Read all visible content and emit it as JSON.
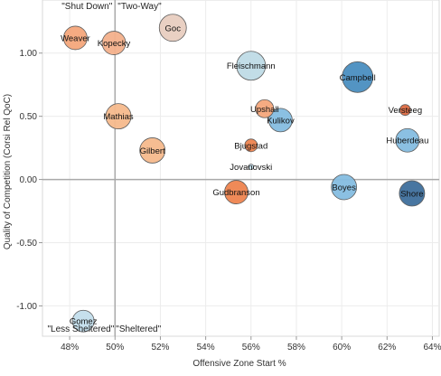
{
  "chart_data": {
    "type": "scatter",
    "xlabel": "Offensive Zone Start %",
    "ylabel": "Quality of Competition (Corsi Rel QoC)",
    "xlim": [
      0.468,
      0.643
    ],
    "ylim": [
      -1.24,
      1.42
    ],
    "x_ticks": [
      0.48,
      0.5,
      0.52,
      0.54,
      0.56,
      0.58,
      0.6,
      0.62,
      0.64
    ],
    "x_tick_labels": [
      "48%",
      "50%",
      "52%",
      "54%",
      "56%",
      "58%",
      "60%",
      "62%",
      "64%"
    ],
    "y_ticks": [
      1.0,
      0.5,
      0.0,
      -0.5,
      -1.0
    ],
    "y_tick_labels": [
      "1.00",
      "0.50",
      "0.00",
      "-0.50",
      "-1.00"
    ],
    "reference_lines": {
      "x": 0.5,
      "y": 0.0
    },
    "quadrant_labels": [
      {
        "text": "\"Shut Down\"",
        "position": "top-left"
      },
      {
        "text": "\"Two-Way\"",
        "position": "top-right"
      },
      {
        "text": "\"Less Sheltered\"",
        "position": "bottom-left"
      },
      {
        "text": "\"Sheltered\"",
        "position": "bottom-right"
      }
    ],
    "grid": true,
    "points": [
      {
        "name": "Weaver",
        "x": 0.4825,
        "y": 1.12,
        "color": "#f4a77b",
        "size": 13
      },
      {
        "name": "Kopecky",
        "x": 0.4995,
        "y": 1.08,
        "color": "#f3b08b",
        "size": 13
      },
      {
        "name": "Goc",
        "x": 0.5255,
        "y": 1.2,
        "color": "#e8cdc0",
        "size": 15
      },
      {
        "name": "Fleischmann",
        "x": 0.56,
        "y": 0.9,
        "color": "#bfdbe6",
        "size": 16
      },
      {
        "name": "Campbell",
        "x": 0.607,
        "y": 0.81,
        "color": "#4a8ec0",
        "size": 17
      },
      {
        "name": "Mathias",
        "x": 0.5015,
        "y": 0.5,
        "color": "#f6b98c",
        "size": 14
      },
      {
        "name": "Upshall",
        "x": 0.566,
        "y": 0.56,
        "color": "#f4a77b",
        "size": 10
      },
      {
        "name": "Kulikov",
        "x": 0.573,
        "y": 0.47,
        "color": "#85bde0",
        "size": 13
      },
      {
        "name": "Versteeg",
        "x": 0.628,
        "y": 0.55,
        "color": "#dc6a42",
        "size": 6
      },
      {
        "name": "Huberdeau",
        "x": 0.629,
        "y": 0.31,
        "color": "#85bde0",
        "size": 13
      },
      {
        "name": "Gilbert",
        "x": 0.5165,
        "y": 0.23,
        "color": "#f6b98c",
        "size": 14
      },
      {
        "name": "Bjugstad",
        "x": 0.56,
        "y": 0.27,
        "color": "#ee844f",
        "size": 7
      },
      {
        "name": "Jovanovski",
        "x": 0.56,
        "y": 0.1,
        "color": "#c3deec",
        "size": 3
      },
      {
        "name": "Gudbranson",
        "x": 0.5535,
        "y": -0.1,
        "color": "#ee844f",
        "size": 13
      },
      {
        "name": "Boyes",
        "x": 0.601,
        "y": -0.06,
        "color": "#85bde0",
        "size": 14
      },
      {
        "name": "Shore",
        "x": 0.631,
        "y": -0.11,
        "color": "#3e6f9c",
        "size": 14
      },
      {
        "name": "Gomez",
        "x": 0.486,
        "y": -1.12,
        "color": "#c3deec",
        "size": 12
      }
    ]
  }
}
